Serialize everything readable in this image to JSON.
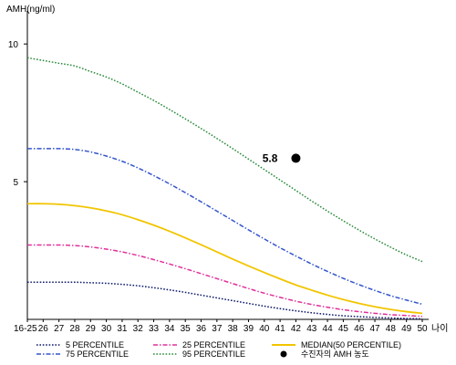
{
  "chart_data": {
    "type": "line",
    "title": "",
    "ylabel": "AMH(ng/ml)",
    "xlabel": "나이",
    "ylim": [
      0,
      11
    ],
    "y_ticks": [
      5,
      10
    ],
    "x_tick_labels": [
      "16-25",
      "26",
      "27",
      "28",
      "29",
      "30",
      "31",
      "32",
      "33",
      "34",
      "35",
      "36",
      "37",
      "38",
      "39",
      "40",
      "41",
      "42",
      "43",
      "44",
      "45",
      "46",
      "47",
      "48",
      "49",
      "50"
    ],
    "grid": false,
    "legend_position": "bottom",
    "series": [
      {
        "name": "5 PERCENTILE",
        "color": "#0d1a6b",
        "style": "dotted",
        "values": [
          1.35,
          1.35,
          1.35,
          1.35,
          1.33,
          1.31,
          1.27,
          1.22,
          1.15,
          1.07,
          0.98,
          0.88,
          0.78,
          0.68,
          0.58,
          0.48,
          0.39,
          0.31,
          0.24,
          0.18,
          0.13,
          0.1,
          0.07,
          0.05,
          0.03,
          0.02
        ]
      },
      {
        "name": "25 PERCENTILE",
        "color": "#e0309a",
        "style": "dashdot",
        "values": [
          2.7,
          2.7,
          2.7,
          2.68,
          2.63,
          2.55,
          2.45,
          2.32,
          2.17,
          2.01,
          1.84,
          1.66,
          1.48,
          1.3,
          1.12,
          0.95,
          0.8,
          0.66,
          0.54,
          0.44,
          0.35,
          0.28,
          0.22,
          0.17,
          0.14,
          0.11
        ]
      },
      {
        "name": "MEDIAN(50 PERCENTILE)",
        "color": "#f2c500",
        "style": "solid",
        "values": [
          4.2,
          4.2,
          4.18,
          4.13,
          4.05,
          3.94,
          3.8,
          3.62,
          3.42,
          3.2,
          2.96,
          2.71,
          2.45,
          2.19,
          1.94,
          1.7,
          1.47,
          1.25,
          1.06,
          0.88,
          0.72,
          0.58,
          0.46,
          0.36,
          0.28,
          0.22
        ]
      },
      {
        "name": "75 PERCENTILE",
        "color": "#3355cc",
        "style": "dashdot",
        "values": [
          6.2,
          6.2,
          6.2,
          6.17,
          6.08,
          5.93,
          5.74,
          5.5,
          5.22,
          4.92,
          4.6,
          4.27,
          3.93,
          3.59,
          3.25,
          2.92,
          2.6,
          2.3,
          2.01,
          1.74,
          1.49,
          1.26,
          1.05,
          0.86,
          0.7,
          0.55
        ]
      },
      {
        "name": "95 PERCENTILE",
        "color": "#2a8a3a",
        "style": "dotted",
        "values": [
          9.5,
          9.4,
          9.3,
          9.2,
          9.0,
          8.8,
          8.55,
          8.25,
          7.95,
          7.62,
          7.28,
          6.93,
          6.57,
          6.2,
          5.82,
          5.44,
          5.06,
          4.68,
          4.3,
          3.93,
          3.58,
          3.24,
          2.92,
          2.62,
          2.34,
          2.1
        ]
      }
    ],
    "annotations": [
      {
        "label": "5.8",
        "x": "42",
        "y": 5.85
      }
    ],
    "marker": {
      "name": "수진자의 AMH 농도",
      "x": "42",
      "y": 5.85,
      "color": "#000000"
    }
  }
}
